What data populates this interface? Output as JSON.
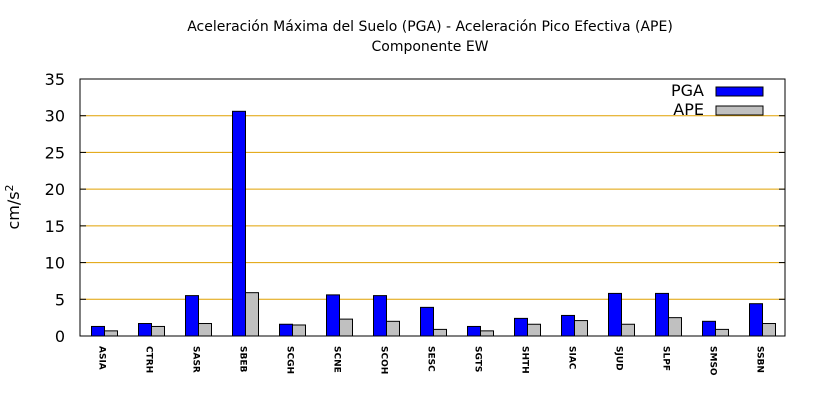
{
  "chart_data": {
    "type": "bar",
    "title": "Aceleración Máxima del Suelo (PGA) -  Aceleración Pico Efectiva (APE)",
    "subtitle": "Componente EW",
    "xlabel": "",
    "ylabel": "cm/s",
    "ylabel_superscript": "2",
    "ylim": [
      0,
      35
    ],
    "yticks": [
      "0",
      "5",
      "10",
      "15",
      "20",
      "25",
      "30",
      "35"
    ],
    "categories": [
      "ASIA",
      "CTRH",
      "SASR",
      "SBEB",
      "SCGH",
      "SCNE",
      "SCOH",
      "SESC",
      "SGTS",
      "SHTH",
      "SIAC",
      "SJUD",
      "SLPF",
      "SMSO",
      "SSBN"
    ],
    "series": [
      {
        "name": "PGA",
        "color": "#0000ff",
        "values": [
          1.3,
          1.7,
          5.5,
          30.6,
          1.6,
          5.6,
          5.5,
          3.9,
          1.3,
          2.4,
          2.8,
          5.8,
          5.8,
          2.0,
          4.4
        ]
      },
      {
        "name": "APE",
        "color": "#c0c0c0",
        "values": [
          0.7,
          1.3,
          1.7,
          5.9,
          1.5,
          2.3,
          2.0,
          0.9,
          0.7,
          1.6,
          2.1,
          1.6,
          2.5,
          0.9,
          1.7
        ]
      }
    ],
    "grid": {
      "horizontal": true,
      "color": "#e0a000"
    },
    "legend": "top-right"
  }
}
